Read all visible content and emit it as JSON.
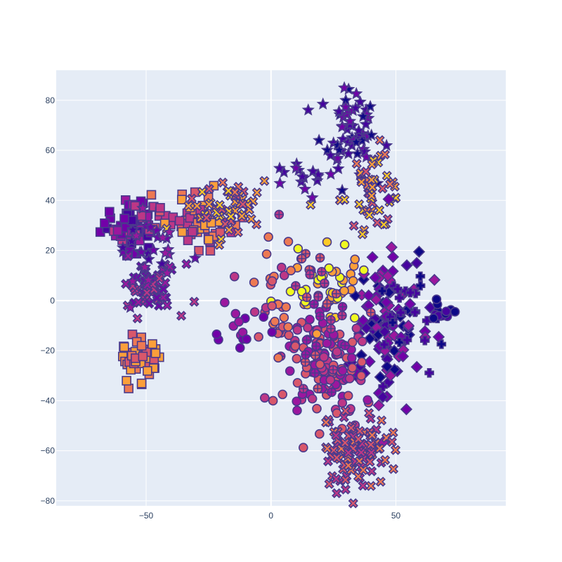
{
  "chart_data": {
    "type": "scatter",
    "title": "",
    "xlabel": "",
    "ylabel": "",
    "xlim": [
      -86,
      94
    ],
    "ylim": [
      -82,
      92
    ],
    "x_ticks": [
      -50,
      0,
      50
    ],
    "y_ticks": [
      -80,
      -60,
      -40,
      -20,
      0,
      20,
      40,
      60,
      80
    ],
    "grid": true,
    "legend": "none",
    "plot_background": "#e5ecf6",
    "grid_color": "#ffffff",
    "marker_outline_color": "#4a3a8c",
    "palette": [
      "#0d0887",
      "#46039f",
      "#7201a8",
      "#9c179e",
      "#bd3786",
      "#d8576b",
      "#ed7953",
      "#fb9f3a",
      "#fdca26",
      "#f0f921"
    ],
    "clusters": [
      {
        "symbol": "square",
        "cx": -56,
        "cy": 30,
        "sx": 6,
        "sy": 5,
        "n": 70,
        "colors": [
          "#9c179e",
          "#7201a8",
          "#bd3786",
          "#46039f"
        ]
      },
      {
        "symbol": "x",
        "cx": -48,
        "cy": 5,
        "sx": 6,
        "sy": 5,
        "n": 55,
        "colors": [
          "#7201a8",
          "#9c179e",
          "#bd3786"
        ]
      },
      {
        "symbol": "square",
        "cx": -30,
        "cy": 32,
        "sx": 7,
        "sy": 5,
        "n": 60,
        "colors": [
          "#ed7953",
          "#d8576b",
          "#bd3786",
          "#fb9f3a"
        ]
      },
      {
        "symbol": "x",
        "cx": -18,
        "cy": 38,
        "sx": 7,
        "sy": 6,
        "n": 55,
        "colors": [
          "#fdca26",
          "#fb9f3a",
          "#ed7953",
          "#d8576b"
        ]
      },
      {
        "symbol": "square",
        "cx": -54,
        "cy": -25,
        "sx": 4,
        "sy": 6,
        "n": 50,
        "colors": [
          "#ed7953",
          "#fb9f3a",
          "#d8576b"
        ]
      },
      {
        "symbol": "star",
        "cx": -50,
        "cy": 20,
        "sx": 6,
        "sy": 8,
        "n": 30,
        "colors": [
          "#7201a8",
          "#46039f",
          "#9c179e"
        ]
      },
      {
        "symbol": "star",
        "cx": 32,
        "cy": 68,
        "sx": 6,
        "sy": 8,
        "n": 60,
        "colors": [
          "#46039f",
          "#0d0887",
          "#7201a8"
        ]
      },
      {
        "symbol": "x",
        "cx": 40,
        "cy": 45,
        "sx": 6,
        "sy": 8,
        "n": 50,
        "colors": [
          "#fb9f3a",
          "#ed7953",
          "#d8576b",
          "#fdca26"
        ]
      },
      {
        "symbol": "diamond",
        "cx": 45,
        "cy": -10,
        "sx": 8,
        "sy": 16,
        "n": 120,
        "colors": [
          "#46039f",
          "#0d0887",
          "#7201a8",
          "#9c179e"
        ]
      },
      {
        "symbol": "circle",
        "cx": 22,
        "cy": -25,
        "sx": 8,
        "sy": 10,
        "n": 120,
        "colors": [
          "#bd3786",
          "#d8576b",
          "#9c179e"
        ]
      },
      {
        "symbol": "x",
        "cx": 34,
        "cy": -60,
        "sx": 7,
        "sy": 7,
        "n": 110,
        "colors": [
          "#d8576b",
          "#bd3786",
          "#ed7953"
        ]
      },
      {
        "symbol": "circle",
        "cx": 22,
        "cy": 5,
        "sx": 7,
        "sy": 7,
        "n": 45,
        "colors": [
          "#f0f921",
          "#fdca26",
          "#fb9f3a"
        ]
      },
      {
        "symbol": "cross-circle",
        "cx": 20,
        "cy": -10,
        "sx": 8,
        "sy": 18,
        "n": 35,
        "colors": [
          "#bd3786",
          "#d8576b",
          "#9c179e"
        ]
      },
      {
        "symbol": "circle",
        "cx": 2,
        "cy": -5,
        "sx": 5,
        "sy": 16,
        "n": 35,
        "colors": [
          "#d8576b",
          "#ed7953",
          "#bd3786"
        ]
      },
      {
        "symbol": "cross",
        "cx": 55,
        "cy": -5,
        "sx": 8,
        "sy": 10,
        "n": 25,
        "colors": [
          "#0d0887",
          "#46039f"
        ]
      },
      {
        "symbol": "circle",
        "cx": 68,
        "cy": -5,
        "sx": 3,
        "sy": 2,
        "n": 12,
        "colors": [
          "#46039f",
          "#0d0887"
        ]
      },
      {
        "symbol": "star",
        "cx": 15,
        "cy": 50,
        "sx": 8,
        "sy": 4,
        "n": 18,
        "colors": [
          "#46039f",
          "#7201a8"
        ]
      },
      {
        "symbol": "circle",
        "cx": -12,
        "cy": -12,
        "sx": 6,
        "sy": 5,
        "n": 14,
        "colors": [
          "#7201a8",
          "#9c179e"
        ]
      }
    ]
  }
}
